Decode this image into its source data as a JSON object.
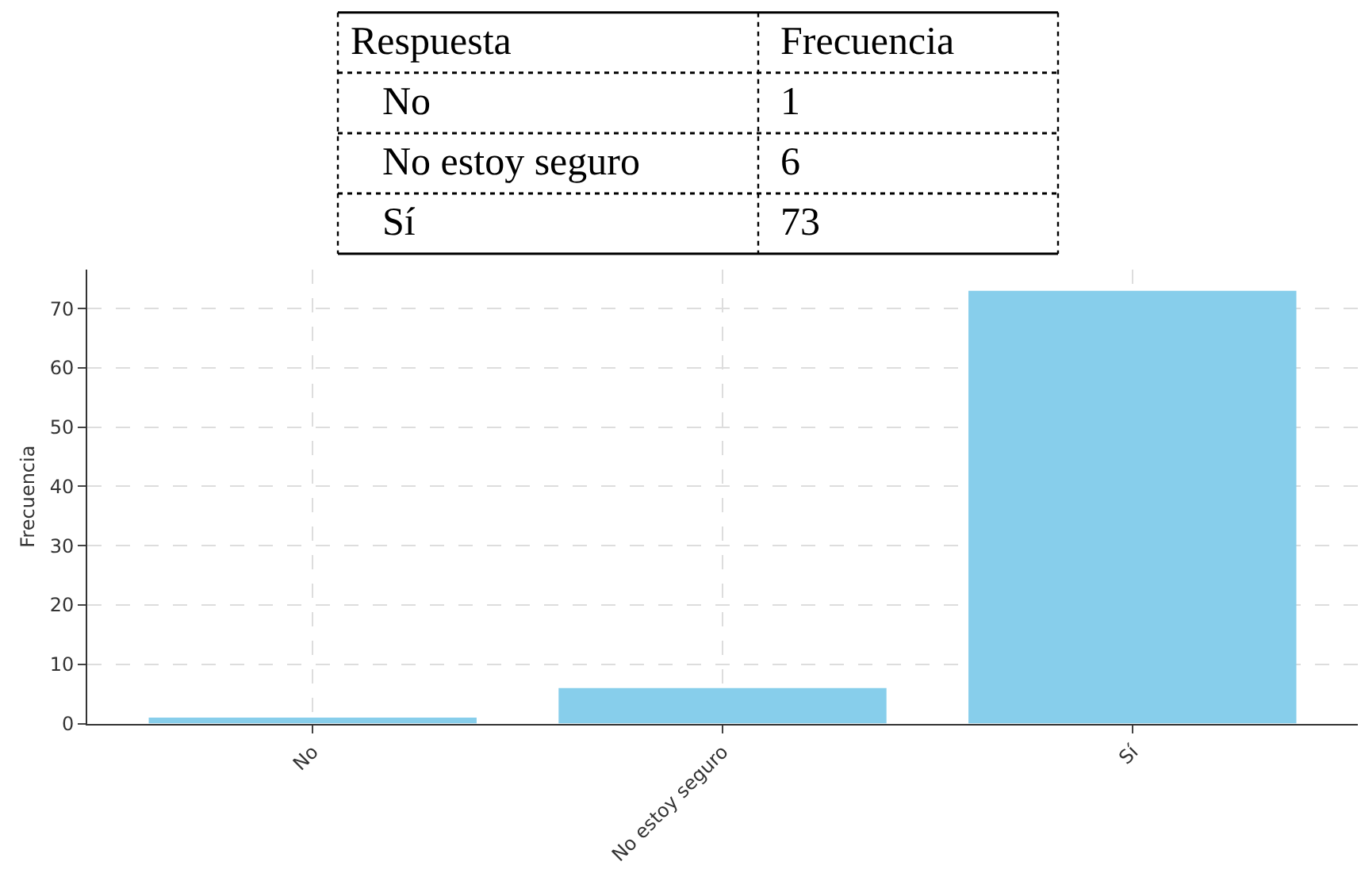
{
  "chart_data": {
    "type": "bar",
    "ylabel": "Frecuencia",
    "categories": [
      "No",
      "No estoy seguro",
      "Sí"
    ],
    "values": [
      1,
      6,
      73
    ],
    "color": "#87ceeb",
    "ylim": [
      0,
      76.6
    ],
    "yticks": [
      0,
      10,
      20,
      30,
      40,
      50,
      60,
      70
    ],
    "grid": true,
    "annotations": [
      "Respuesta",
      "Frecuencia",
      "No",
      "1",
      "No estoy seguro",
      "6",
      "Sí",
      "73"
    ]
  }
}
